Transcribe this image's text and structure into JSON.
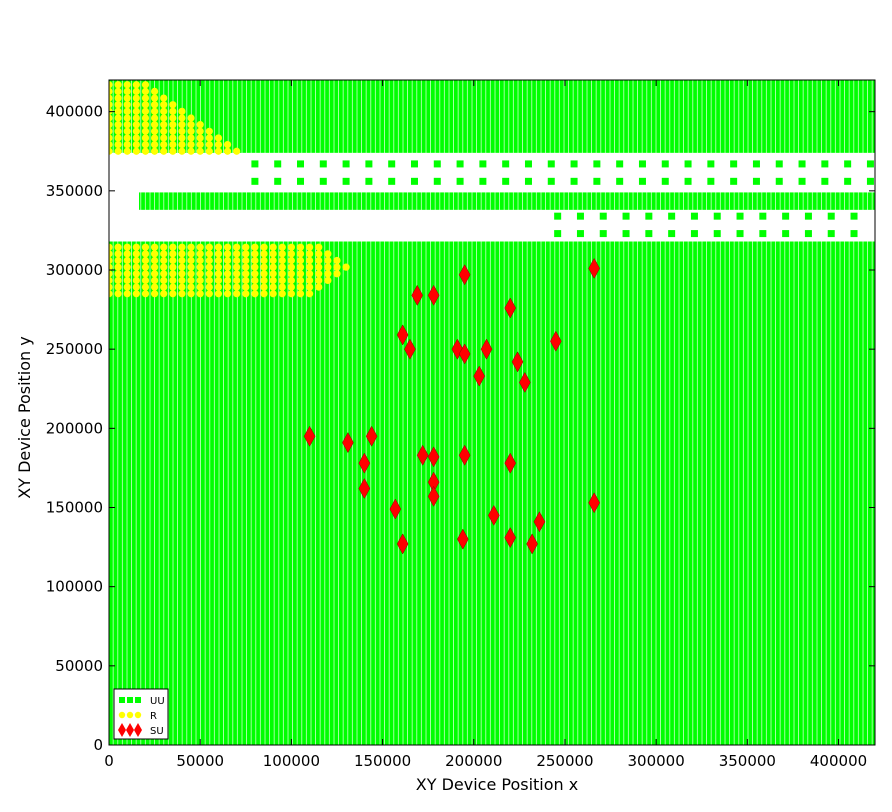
{
  "chart_data": {
    "type": "scatter",
    "title": "",
    "xlabel": "XY Device  Position  x",
    "ylabel": "XY Device  Position  y",
    "xlim": [
      0,
      420000
    ],
    "ylim": [
      0,
      420000
    ],
    "grid": false,
    "legend_position": "bottom-left",
    "x_ticks": [
      0,
      50000,
      100000,
      150000,
      200000,
      250000,
      300000,
      350000,
      400000
    ],
    "y_ticks": [
      0,
      50000,
      100000,
      150000,
      200000,
      250000,
      300000,
      350000,
      400000
    ],
    "x_tick_labels": [
      "0",
      "50000",
      "100000",
      "150000",
      "200000",
      "250000",
      "300000",
      "350000",
      "400000"
    ],
    "y_tick_labels": [
      "0",
      "50000",
      "100000",
      "150000",
      "200000",
      "250000",
      "300000",
      "350000",
      "400000"
    ],
    "colors": {
      "UU": "#00ff00",
      "R": "#ffff00",
      "SU": "#ff0000"
    },
    "background_region": {
      "series": "UU",
      "description": "dense green square-marker grid filling the plot area",
      "white_band_1": [
        349000,
        374000
      ],
      "white_band_2": [
        318000,
        338000
      ]
    },
    "series": [
      {
        "name": "UU",
        "marker": "square",
        "color": "#00ff00",
        "band_points": [
          {
            "x": [
              80000,
              420000
            ],
            "y": 367000,
            "step": 12500
          },
          {
            "x": [
              80000,
              420000
            ],
            "y": 356000,
            "step": 12500
          },
          {
            "x": [
              246000,
              420000
            ],
            "y": 334000,
            "step": 12500
          },
          {
            "x": [
              246000,
              420000
            ],
            "y": 323000,
            "step": 12500
          }
        ]
      },
      {
        "name": "R",
        "marker": "circle",
        "color": "#ffff00",
        "clusters": [
          {
            "x": [
              0,
              70000
            ],
            "y": [
              375000,
              418000
            ]
          },
          {
            "x": [
              0,
              135000
            ],
            "y": [
              285000,
              318000
            ]
          }
        ]
      },
      {
        "name": "SU",
        "marker": "diamond",
        "color": "#ff0000",
        "points": [
          [
            110000,
            195000
          ],
          [
            131000,
            191000
          ],
          [
            140000,
            178000
          ],
          [
            144000,
            195000
          ],
          [
            140000,
            162000
          ],
          [
            157000,
            149000
          ],
          [
            161000,
            127000
          ],
          [
            161000,
            259000
          ],
          [
            165000,
            250000
          ],
          [
            169000,
            284000
          ],
          [
            172000,
            183000
          ],
          [
            178000,
            284000
          ],
          [
            178000,
            182000
          ],
          [
            178000,
            166000
          ],
          [
            178000,
            157000
          ],
          [
            191000,
            250000
          ],
          [
            194000,
            130000
          ],
          [
            195000,
            297000
          ],
          [
            195000,
            247000
          ],
          [
            195000,
            183000
          ],
          [
            203000,
            233000
          ],
          [
            207000,
            250000
          ],
          [
            211000,
            145000
          ],
          [
            220000,
            276000
          ],
          [
            220000,
            178000
          ],
          [
            220000,
            131000
          ],
          [
            224000,
            242000
          ],
          [
            228000,
            229000
          ],
          [
            232000,
            127000
          ],
          [
            236000,
            141000
          ],
          [
            245000,
            255000
          ],
          [
            266000,
            301000
          ],
          [
            266000,
            153000
          ]
        ]
      }
    ]
  }
}
